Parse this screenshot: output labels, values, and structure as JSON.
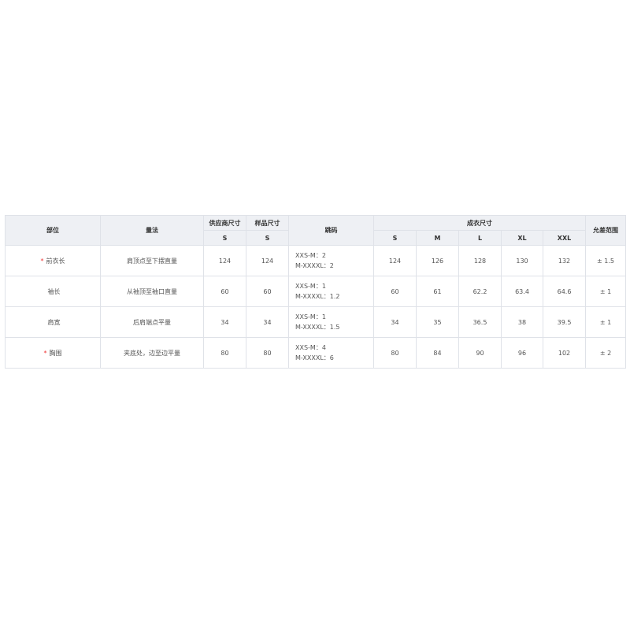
{
  "headers": {
    "part": "部位",
    "method": "量法",
    "supplier": "供应商尺寸",
    "sample": "样品尺寸",
    "grading": "跳码",
    "garment": "成衣尺寸",
    "tolerance": "允差范围"
  },
  "supplier_size": "S",
  "sample_size": "S",
  "sizes": [
    "S",
    "M",
    "L",
    "XL",
    "XXL"
  ],
  "rows": [
    {
      "required": "*",
      "part": "前衣长",
      "method": "肩顶点至下摆直量",
      "supplier": "124",
      "sample": "124",
      "grade1": "XXS-M：2",
      "grade2": "M-XXXXL：2",
      "values": [
        "124",
        "126",
        "128",
        "130",
        "132"
      ],
      "tolerance": "± 1.5"
    },
    {
      "required": "",
      "part": "袖长",
      "method": "从袖顶至袖口直量",
      "supplier": "60",
      "sample": "60",
      "grade1": "XXS-M：1",
      "grade2": "M-XXXXL：1.2",
      "values": [
        "60",
        "61",
        "62.2",
        "63.4",
        "64.6"
      ],
      "tolerance": "± 1"
    },
    {
      "required": "",
      "part": "肩宽",
      "method": "后肩端点平量",
      "supplier": "34",
      "sample": "34",
      "grade1": "XXS-M：1",
      "grade2": "M-XXXXL：1.5",
      "values": [
        "34",
        "35",
        "36.5",
        "38",
        "39.5"
      ],
      "tolerance": "± 1"
    },
    {
      "required": "*",
      "part": "胸围",
      "method": "夹底处，边至边平量",
      "supplier": "80",
      "sample": "80",
      "grade1": "XXS-M：4",
      "grade2": "M-XXXXL：6",
      "values": [
        "80",
        "84",
        "90",
        "96",
        "102"
      ],
      "tolerance": "± 2"
    }
  ]
}
